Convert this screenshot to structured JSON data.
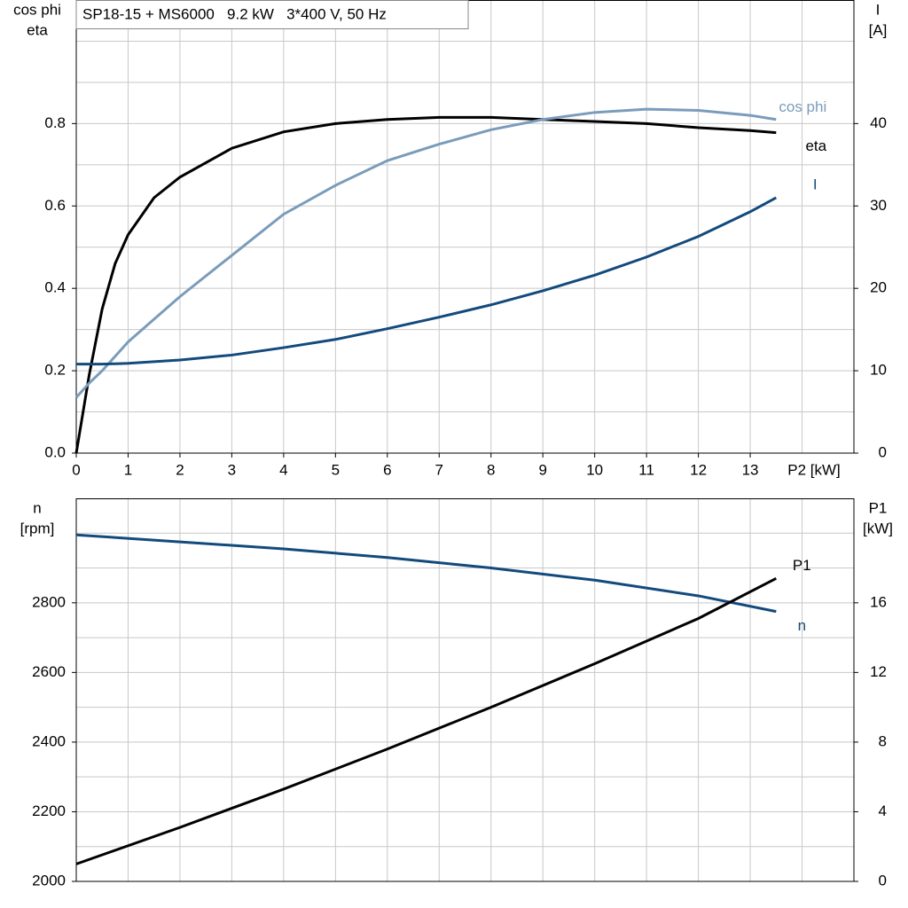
{
  "chart_data": [
    {
      "type": "line",
      "title": "SP18-15 + MS6000   9.2 kW   3*400 V, 50 Hz",
      "ylabel": [
        "cos phi",
        "eta"
      ],
      "y2label": [
        "I",
        "[A]"
      ],
      "xlabel": "P2 [kW]",
      "x": [
        0,
        0.25,
        0.5,
        0.75,
        1,
        1.5,
        2,
        3,
        4,
        5,
        6,
        7,
        8,
        9,
        10,
        11,
        12,
        13,
        13.5
      ],
      "xlim": [
        0,
        15
      ],
      "xticks": [
        0,
        1,
        2,
        3,
        4,
        5,
        6,
        7,
        8,
        9,
        10,
        11,
        12,
        13
      ],
      "xgrid": [
        1,
        2,
        3,
        4,
        5,
        6,
        7,
        8,
        9,
        10,
        11,
        12,
        13,
        14
      ],
      "ylim": [
        0,
        1.1
      ],
      "yticks": [
        {
          "value": 0,
          "label": "0.0"
        },
        0.2,
        0.4,
        0.6,
        0.8
      ],
      "ygrid": [
        0.1,
        0.2,
        0.3,
        0.4,
        0.5,
        0.6,
        0.7,
        0.8,
        0.9,
        1.0
      ],
      "y2lim": [
        0,
        55
      ],
      "y2ticks": [
        0,
        10,
        20,
        30,
        40
      ],
      "series": [
        {
          "name": "eta",
          "color": "#000000",
          "values": [
            0,
            0.19,
            0.35,
            0.46,
            0.53,
            0.62,
            0.67,
            0.74,
            0.78,
            0.8,
            0.81,
            0.815,
            0.815,
            0.81,
            0.805,
            0.8,
            0.79,
            0.783,
            0.778
          ]
        },
        {
          "name": "cos phi",
          "color": "#7a9cbb",
          "values": [
            0.135,
            0.17,
            0.2,
            0.235,
            0.27,
            0.325,
            0.38,
            0.48,
            0.58,
            0.65,
            0.71,
            0.75,
            0.785,
            0.81,
            0.827,
            0.835,
            0.832,
            0.82,
            0.81
          ]
        },
        {
          "name": "I",
          "color": "#134a7c",
          "axis": "y2",
          "values": [
            10.8,
            10.8,
            10.8,
            10.85,
            10.9,
            11.1,
            11.3,
            11.9,
            12.8,
            13.8,
            15.1,
            16.5,
            18.0,
            19.7,
            21.6,
            23.8,
            26.3,
            29.3,
            31.0
          ]
        }
      ]
    },
    {
      "type": "line",
      "ylabel": [
        "n",
        "[rpm]"
      ],
      "y2label": [
        "P1",
        "[kW]"
      ],
      "x": [
        0,
        2,
        4,
        6,
        8,
        10,
        12,
        13.5
      ],
      "xlim": [
        0,
        15
      ],
      "xgrid": [
        1,
        2,
        3,
        4,
        5,
        6,
        7,
        8,
        9,
        10,
        11,
        12,
        13,
        14
      ],
      "ylim": [
        2000,
        3100
      ],
      "yticks": [
        2000,
        2200,
        2400,
        2600,
        2800
      ],
      "ygrid": [
        2100,
        2200,
        2300,
        2400,
        2500,
        2600,
        2700,
        2800,
        2900,
        3000
      ],
      "y2lim": [
        0,
        22
      ],
      "y2ticks": [
        0,
        4,
        8,
        12,
        16
      ],
      "series": [
        {
          "name": "n",
          "color": "#134a7c",
          "values": [
            2995,
            2975,
            2955,
            2930,
            2900,
            2865,
            2820,
            2775
          ]
        },
        {
          "name": "P1",
          "color": "#000000",
          "axis": "y2",
          "values": [
            1.0,
            3.1,
            5.3,
            7.6,
            10.0,
            12.5,
            15.1,
            17.4
          ]
        }
      ]
    }
  ]
}
